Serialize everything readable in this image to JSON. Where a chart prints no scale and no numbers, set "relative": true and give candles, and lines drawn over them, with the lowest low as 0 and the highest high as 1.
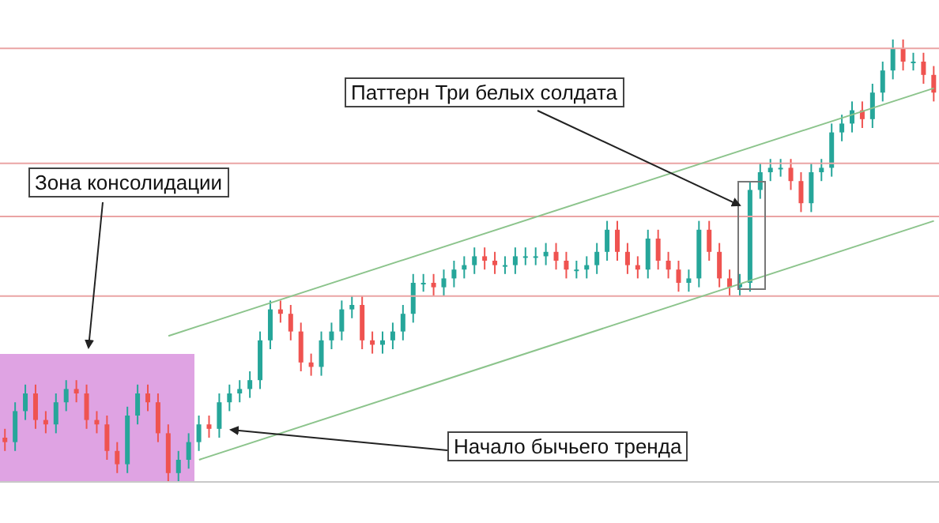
{
  "chart_data": {
    "type": "candlestick",
    "relative": true,
    "categories": [
      null,
      null,
      null,
      null,
      null,
      null,
      null,
      null,
      null,
      null,
      null,
      null,
      null,
      null,
      null,
      null,
      null,
      null,
      null,
      null,
      null,
      null,
      null,
      null,
      null,
      null,
      null,
      null,
      null,
      null,
      null,
      null,
      null,
      null,
      null,
      null,
      null,
      null,
      null,
      null,
      null,
      null,
      null,
      null,
      null,
      null,
      null,
      null,
      null,
      null,
      null,
      null,
      null,
      null,
      null,
      null,
      null,
      null,
      null,
      null,
      null,
      null,
      null,
      null,
      null,
      null,
      null,
      null,
      null,
      null,
      null,
      null,
      null,
      null,
      null,
      null,
      null,
      null,
      null,
      null,
      null,
      null,
      null,
      null,
      null,
      null,
      null,
      null,
      null,
      null,
      null,
      null
    ],
    "ohlc": [
      [
        0.1,
        0.12,
        0.07,
        0.09
      ],
      [
        0.09,
        0.18,
        0.07,
        0.16
      ],
      [
        0.16,
        0.22,
        0.14,
        0.2
      ],
      [
        0.2,
        0.22,
        0.12,
        0.14
      ],
      [
        0.14,
        0.16,
        0.11,
        0.13
      ],
      [
        0.13,
        0.2,
        0.11,
        0.18
      ],
      [
        0.18,
        0.23,
        0.16,
        0.21
      ],
      [
        0.21,
        0.23,
        0.18,
        0.2
      ],
      [
        0.2,
        0.22,
        0.12,
        0.14
      ],
      [
        0.14,
        0.16,
        0.11,
        0.13
      ],
      [
        0.13,
        0.15,
        0.05,
        0.07
      ],
      [
        0.07,
        0.09,
        0.02,
        0.04
      ],
      [
        0.04,
        0.17,
        0.02,
        0.15
      ],
      [
        0.15,
        0.22,
        0.13,
        0.2
      ],
      [
        0.2,
        0.22,
        0.16,
        0.18
      ],
      [
        0.18,
        0.2,
        0.09,
        0.11
      ],
      [
        0.11,
        0.13,
        0,
        0.02
      ],
      [
        0.02,
        0.07,
        0,
        0.05
      ],
      [
        0.05,
        0.11,
        0.03,
        0.09
      ],
      [
        0.09,
        0.15,
        0.07,
        0.13
      ],
      [
        0.13,
        0.15,
        0.1,
        0.12
      ],
      [
        0.12,
        0.2,
        0.1,
        0.18
      ],
      [
        0.18,
        0.22,
        0.16,
        0.2
      ],
      [
        0.2,
        0.23,
        0.18,
        0.21
      ],
      [
        0.21,
        0.25,
        0.19,
        0.23
      ],
      [
        0.23,
        0.34,
        0.21,
        0.32
      ],
      [
        0.32,
        0.41,
        0.3,
        0.39
      ],
      [
        0.39,
        0.41,
        0.36,
        0.38
      ],
      [
        0.38,
        0.4,
        0.32,
        0.34
      ],
      [
        0.34,
        0.36,
        0.25,
        0.27
      ],
      [
        0.27,
        0.29,
        0.24,
        0.26
      ],
      [
        0.26,
        0.34,
        0.24,
        0.32
      ],
      [
        0.32,
        0.36,
        0.3,
        0.34
      ],
      [
        0.34,
        0.41,
        0.32,
        0.39
      ],
      [
        0.39,
        0.42,
        0.37,
        0.4
      ],
      [
        0.4,
        0.42,
        0.3,
        0.32
      ],
      [
        0.32,
        0.34,
        0.29,
        0.31
      ],
      [
        0.31,
        0.34,
        0.29,
        0.32
      ],
      [
        0.32,
        0.36,
        0.3,
        0.34
      ],
      [
        0.34,
        0.4,
        0.32,
        0.38
      ],
      [
        0.38,
        0.47,
        0.36,
        0.45
      ],
      [
        0.45,
        0.47,
        0.43,
        0.45
      ],
      [
        0.45,
        0.47,
        0.42,
        0.44
      ],
      [
        0.44,
        0.48,
        0.42,
        0.46
      ],
      [
        0.46,
        0.5,
        0.44,
        0.48
      ],
      [
        0.48,
        0.51,
        0.46,
        0.49
      ],
      [
        0.49,
        0.53,
        0.47,
        0.51
      ],
      [
        0.51,
        0.53,
        0.48,
        0.5
      ],
      [
        0.5,
        0.52,
        0.47,
        0.49
      ],
      [
        0.49,
        0.51,
        0.47,
        0.49
      ],
      [
        0.49,
        0.53,
        0.47,
        0.51
      ],
      [
        0.51,
        0.53,
        0.49,
        0.51
      ],
      [
        0.51,
        0.53,
        0.49,
        0.51
      ],
      [
        0.51,
        0.54,
        0.49,
        0.52
      ],
      [
        0.52,
        0.54,
        0.48,
        0.5
      ],
      [
        0.5,
        0.52,
        0.46,
        0.48
      ],
      [
        0.48,
        0.5,
        0.46,
        0.48
      ],
      [
        0.48,
        0.51,
        0.46,
        0.49
      ],
      [
        0.49,
        0.54,
        0.47,
        0.52
      ],
      [
        0.52,
        0.59,
        0.5,
        0.57
      ],
      [
        0.57,
        0.59,
        0.5,
        0.52
      ],
      [
        0.52,
        0.54,
        0.47,
        0.49
      ],
      [
        0.49,
        0.51,
        0.46,
        0.48
      ],
      [
        0.48,
        0.57,
        0.46,
        0.55
      ],
      [
        0.55,
        0.57,
        0.48,
        0.5
      ],
      [
        0.5,
        0.52,
        0.46,
        0.48
      ],
      [
        0.48,
        0.5,
        0.43,
        0.45
      ],
      [
        0.45,
        0.48,
        0.43,
        0.46
      ],
      [
        0.46,
        0.59,
        0.44,
        0.57
      ],
      [
        0.57,
        0.59,
        0.5,
        0.52
      ],
      [
        0.52,
        0.54,
        0.44,
        0.46
      ],
      [
        0.46,
        0.48,
        0.42,
        0.44
      ],
      [
        0.44,
        0.47,
        0.42,
        0.45
      ],
      [
        0.45,
        0.68,
        0.43,
        0.66
      ],
      [
        0.66,
        0.72,
        0.64,
        0.7
      ],
      [
        0.7,
        0.73,
        0.68,
        0.71
      ],
      [
        0.71,
        0.73,
        0.69,
        0.71
      ],
      [
        0.71,
        0.73,
        0.66,
        0.68
      ],
      [
        0.68,
        0.7,
        0.61,
        0.63
      ],
      [
        0.63,
        0.72,
        0.61,
        0.7
      ],
      [
        0.7,
        0.73,
        0.68,
        0.71
      ],
      [
        0.71,
        0.81,
        0.69,
        0.79
      ],
      [
        0.79,
        0.83,
        0.77,
        0.81
      ],
      [
        0.81,
        0.86,
        0.79,
        0.84
      ],
      [
        0.84,
        0.86,
        0.8,
        0.82
      ],
      [
        0.82,
        0.9,
        0.8,
        0.88
      ],
      [
        0.88,
        0.95,
        0.86,
        0.93
      ],
      [
        0.93,
        1,
        0.91,
        0.98
      ],
      [
        0.98,
        1,
        0.93,
        0.95
      ],
      [
        0.95,
        0.97,
        0.93,
        0.95
      ],
      [
        0.95,
        0.97,
        0.9,
        0.92
      ],
      [
        0.92,
        0.94,
        0.86,
        0.88
      ]
    ],
    "series": [
      {
        "type": "line",
        "color": "#8cc48c",
        "values": [
          null,
          null,
          null,
          null,
          null,
          null,
          null,
          null,
          null,
          null,
          null,
          null,
          null,
          null,
          null,
          null,
          0.33,
          null,
          null,
          null,
          null,
          null,
          null,
          null,
          null,
          null,
          null,
          null,
          null,
          null,
          null,
          null,
          null,
          null,
          null,
          null,
          null,
          null,
          null,
          null,
          null,
          null,
          null,
          null,
          null,
          null,
          null,
          null,
          null,
          null,
          null,
          null,
          null,
          null,
          null,
          null,
          null,
          null,
          null,
          null,
          null,
          null,
          null,
          null,
          null,
          null,
          null,
          null,
          null,
          null,
          null,
          null,
          null,
          null,
          null,
          null,
          null,
          null,
          null,
          null,
          null,
          null,
          null,
          null,
          null,
          null,
          null,
          null,
          null,
          null,
          null,
          0.89
        ]
      },
      {
        "type": "line",
        "color": "#8cc48c",
        "values": [
          null,
          null,
          null,
          null,
          null,
          null,
          null,
          null,
          null,
          null,
          null,
          null,
          null,
          null,
          null,
          null,
          null,
          null,
          null,
          0.05,
          null,
          null,
          null,
          null,
          null,
          null,
          null,
          null,
          null,
          null,
          null,
          null,
          null,
          null,
          null,
          null,
          null,
          null,
          null,
          null,
          null,
          null,
          null,
          null,
          null,
          null,
          null,
          null,
          null,
          null,
          null,
          null,
          null,
          null,
          null,
          null,
          null,
          null,
          null,
          null,
          null,
          null,
          null,
          null,
          null,
          null,
          null,
          null,
          null,
          null,
          null,
          null,
          null,
          null,
          null,
          null,
          null,
          null,
          null,
          null,
          null,
          null,
          null,
          null,
          null,
          null,
          null,
          null,
          null,
          null,
          null,
          0.59
        ]
      }
    ],
    "ref_lines": [
      {
        "axis": "y",
        "value": 0.98,
        "color": "#eaa4a4"
      },
      {
        "axis": "y",
        "value": 0.72,
        "color": "#eaa4a4"
      },
      {
        "axis": "y",
        "value": 0.6,
        "color": "#eaa4a4"
      },
      {
        "axis": "y",
        "value": 0.42,
        "color": "#eaa4a4"
      },
      {
        "axis": "y",
        "value": 0,
        "color": "#c8c8c8"
      }
    ],
    "annotations": [
      "Зона консолидации",
      "Паттерн Три белых солдата",
      "Начало бычьего тренда"
    ]
  }
}
